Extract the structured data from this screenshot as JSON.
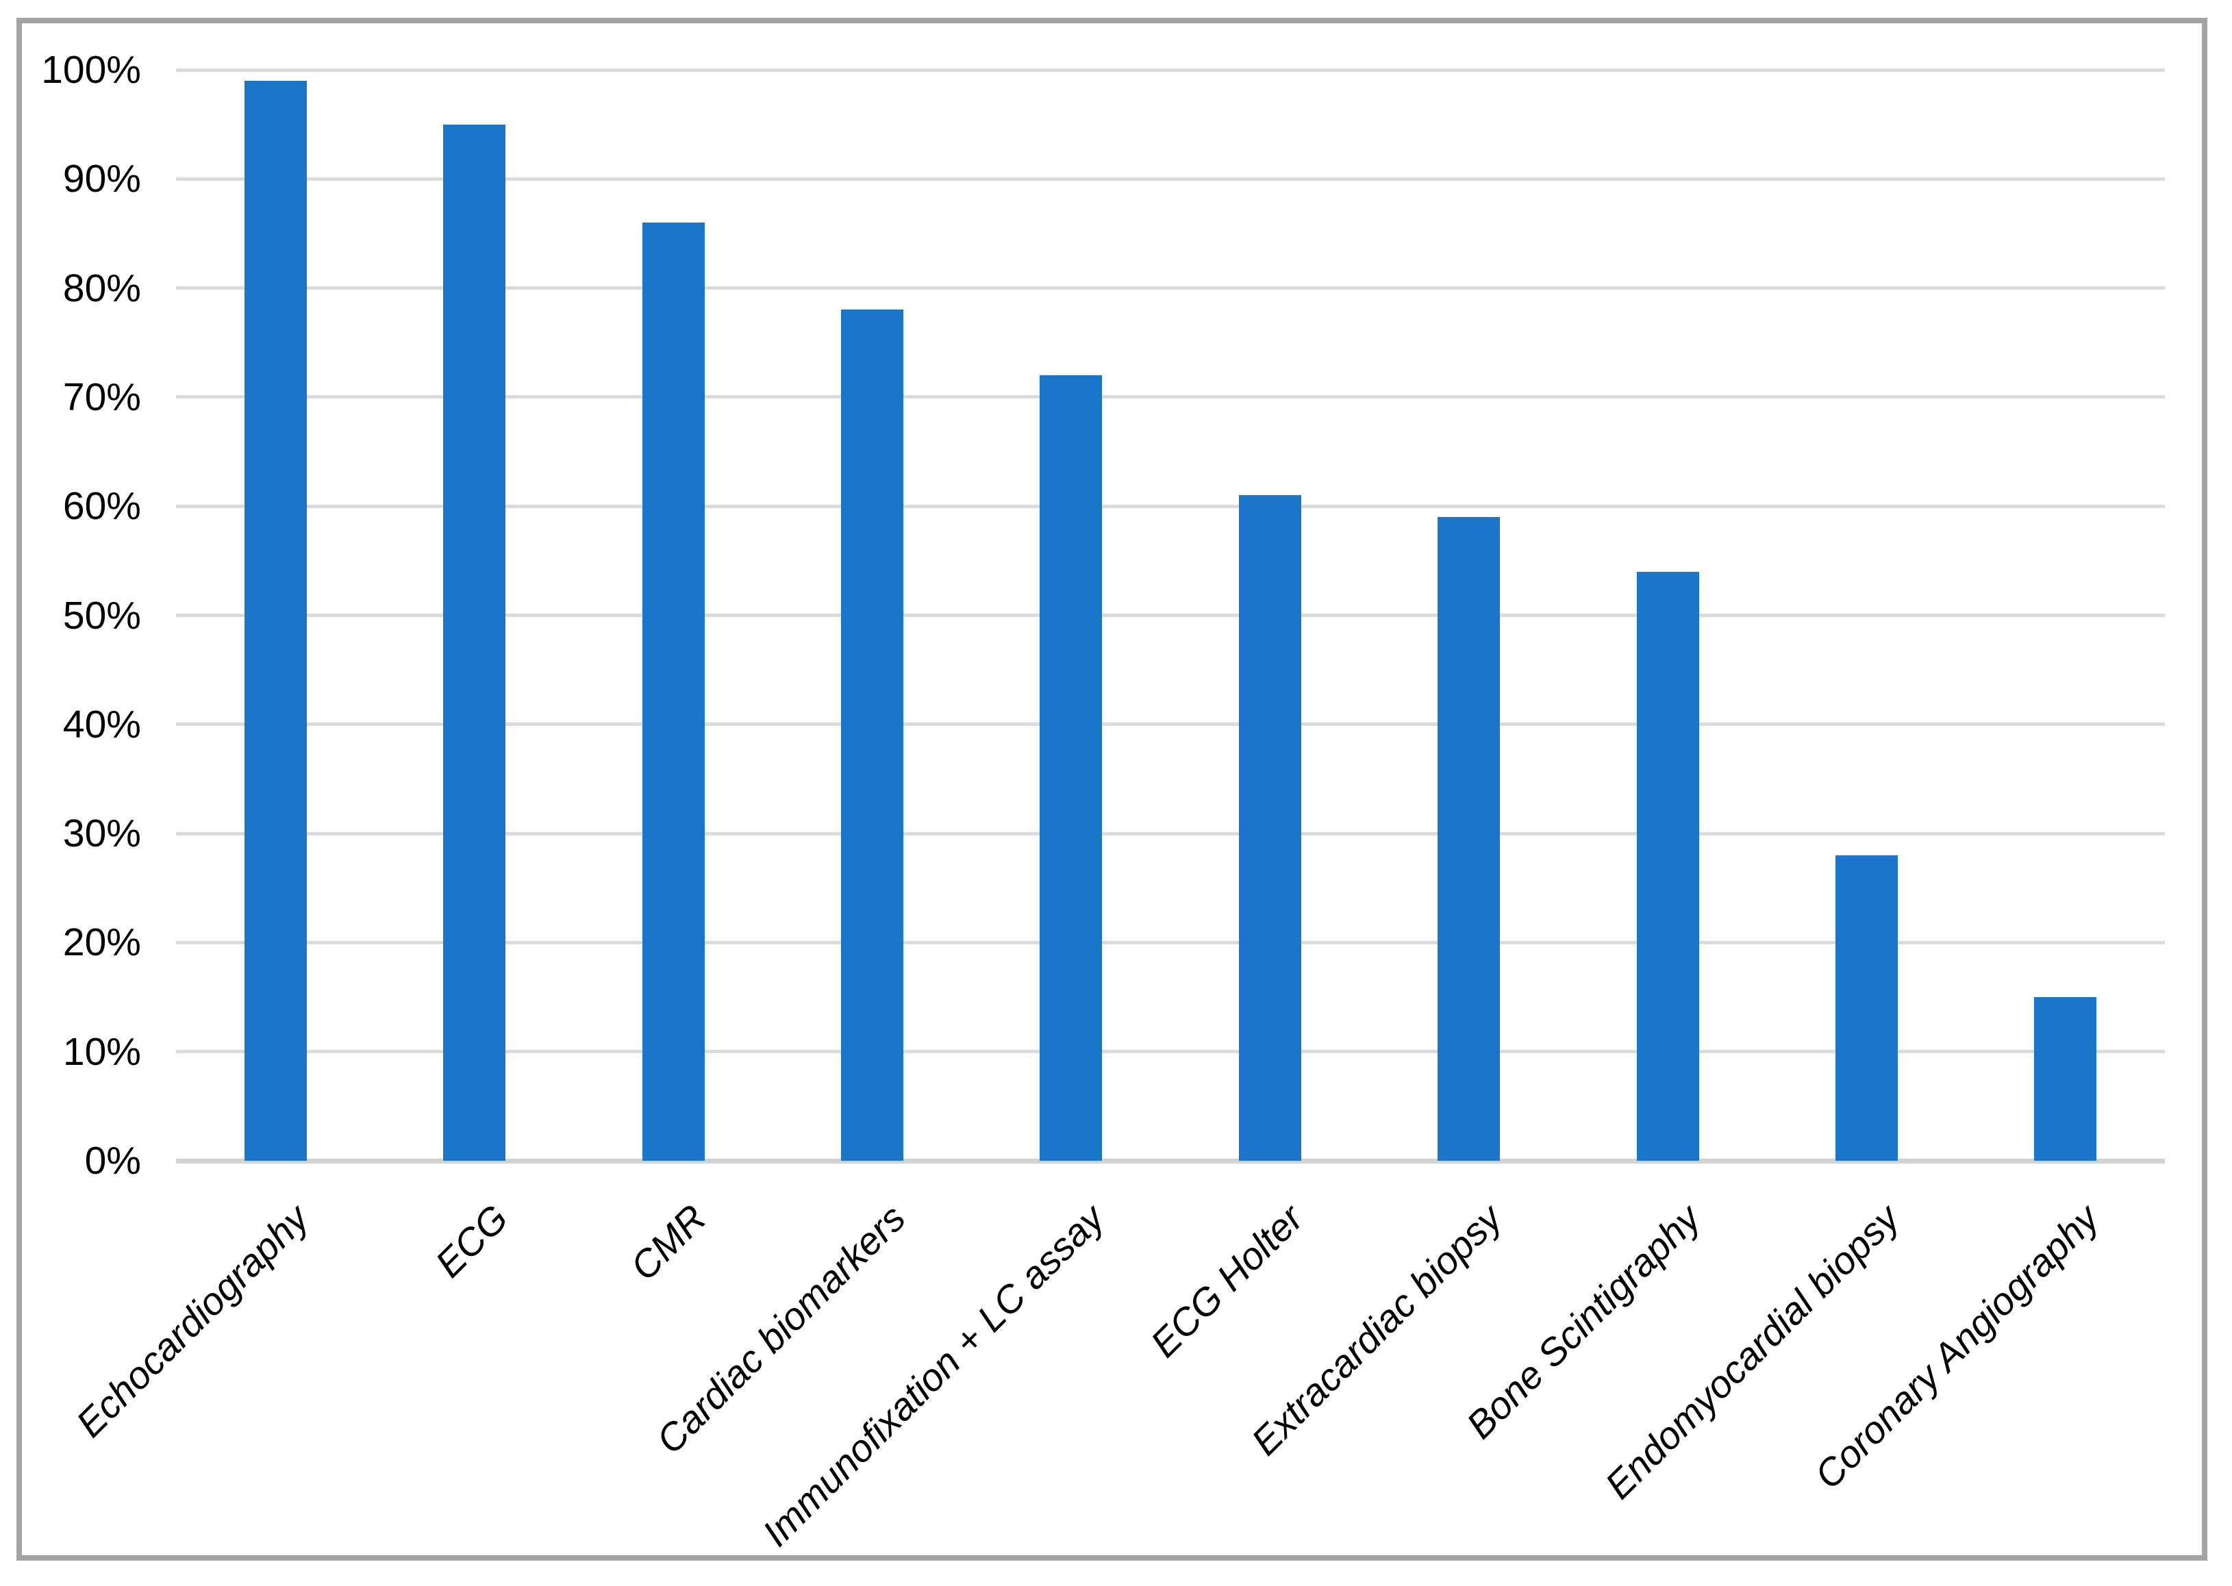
{
  "page": {
    "background_color": "#ffffff",
    "border_color": "#a3a3a3"
  },
  "chart_data": {
    "type": "bar",
    "title": "",
    "xlabel": "",
    "ylabel": "",
    "categories": [
      "Echocardiography",
      "ECG",
      "CMR",
      "Cardiac biomarkers",
      "Immunofixation + LC assay",
      "ECG Holter",
      "Extracardiac biopsy",
      "Bone Scintigraphy",
      "Endomyocardial biopsy",
      "Coronary Angiography"
    ],
    "values": [
      99,
      95,
      86,
      78,
      72,
      61,
      59,
      54,
      28,
      15
    ],
    "value_unit": "%",
    "ylim": [
      0,
      100
    ],
    "ytick_step": 10,
    "ytick_labels": [
      "0%",
      "10%",
      "20%",
      "30%",
      "40%",
      "50%",
      "60%",
      "70%",
      "80%",
      "90%",
      "100%"
    ],
    "grid": true,
    "legend_position": "none",
    "bar_color": "#1b75c8",
    "gridline_color": "#dbdbdb",
    "axis_line_color": "#d2d2d2",
    "text_color": "#000000"
  }
}
